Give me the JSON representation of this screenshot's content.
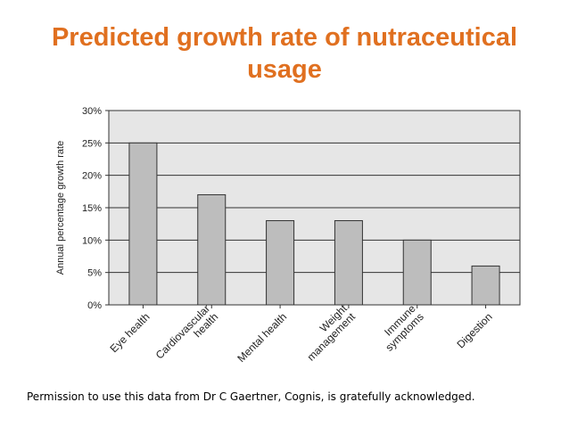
{
  "title_line1": "Predicted growth rate of nutraceutical",
  "title_line2": "usage",
  "footnote": "Permission to use this data from Dr C Gaertner, Cognis, is gratefully acknowledged.",
  "colors": {
    "title": "#e07020",
    "bar": "#bdbdbd",
    "plot_bg": "#e6e6e6"
  },
  "chart_data": {
    "type": "bar",
    "categories": [
      [
        "Eye health"
      ],
      [
        "Cardiovascular",
        "health"
      ],
      [
        "Mental health"
      ],
      [
        "Weight",
        "management"
      ],
      [
        "Immune",
        "symptoms"
      ],
      [
        "Digestion"
      ]
    ],
    "values": [
      25,
      17,
      13,
      13,
      10,
      6
    ],
    "ylabel": "Annual percentage growth rate",
    "ylim": [
      0,
      30
    ],
    "yticks": [
      "0%",
      "5%",
      "10%",
      "15%",
      "20%",
      "25%",
      "30%"
    ],
    "grid": true
  }
}
